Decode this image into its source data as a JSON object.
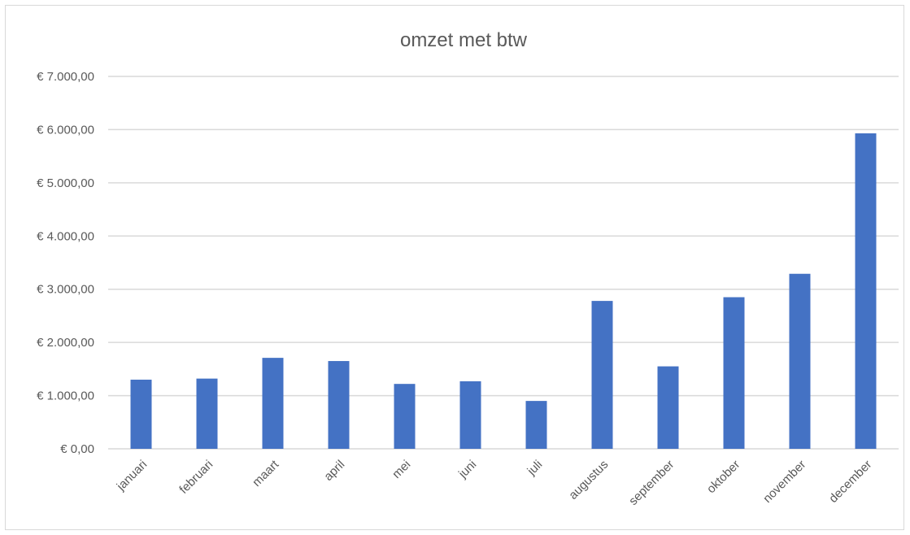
{
  "chart_data": {
    "type": "bar",
    "title": "omzet met btw",
    "xlabel": "",
    "ylabel": "",
    "categories": [
      "januari",
      "februari",
      "maart",
      "april",
      "mei",
      "juni",
      "juli",
      "augustus",
      "september",
      "oktober",
      "november",
      "december"
    ],
    "values": [
      1300,
      1320,
      1710,
      1650,
      1220,
      1270,
      900,
      2780,
      1550,
      2850,
      3290,
      5930
    ],
    "ylim": [
      0,
      7000
    ],
    "yticks": [
      0,
      1000,
      2000,
      3000,
      4000,
      5000,
      6000,
      7000
    ],
    "ytick_labels": [
      "€ 0,00",
      "€ 1.000,00",
      "€ 2.000,00",
      "€ 3.000,00",
      "€ 4.000,00",
      "€ 5.000,00",
      "€ 6.000,00",
      "€ 7.000,00"
    ],
    "grid": true,
    "legend": "none",
    "bar_color": "#4472c4"
  }
}
